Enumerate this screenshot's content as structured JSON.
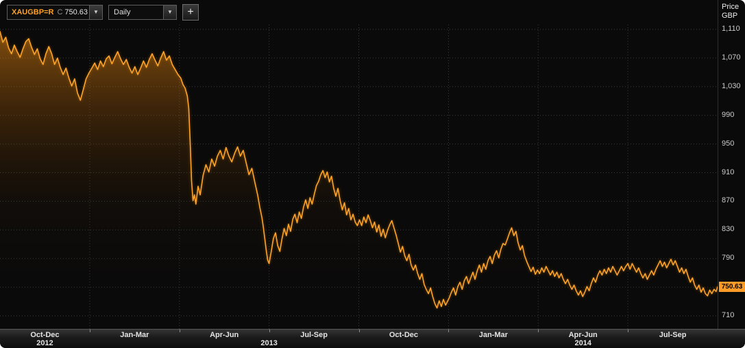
{
  "toolbar": {
    "ticker": "XAUGBP=R",
    "close_prefix": "C",
    "close_value": "750.63",
    "interval_selected": "Daily",
    "add_button_label": "+"
  },
  "price_axis": {
    "title_line1": "Price",
    "title_line2": "GBP",
    "current_badge": "750.63"
  },
  "chart_data": {
    "type": "area",
    "title": "XAUGBP=R Daily",
    "instrument": "XAUGBP=R",
    "interval": "Daily",
    "last_close": 750.63,
    "line_color": "#ffa42a",
    "grid": "dotted",
    "legend": "none",
    "ylabel": "Price GBP",
    "ylim": [
      692,
      1117
    ],
    "y_ticks": [
      {
        "label": "1,110",
        "value": 1110
      },
      {
        "label": "1,070",
        "value": 1070
      },
      {
        "label": "1,030",
        "value": 1030
      },
      {
        "label": "990",
        "value": 990
      },
      {
        "label": "950",
        "value": 950
      },
      {
        "label": "910",
        "value": 910
      },
      {
        "label": "870",
        "value": 870
      },
      {
        "label": "830",
        "value": 830
      },
      {
        "label": "790",
        "value": 790
      },
      {
        "label": "750",
        "value": 750
      },
      {
        "label": "710",
        "value": 710
      }
    ],
    "x_domain": [
      0,
      1000
    ],
    "x_quarters": [
      "Oct-Dec",
      "Jan-Mar",
      "Apr-Jun",
      "Jul-Sep",
      "Oct-Dec",
      "Jan-Mar",
      "Apr-Jun",
      "Jul-Sep"
    ],
    "x_years": [
      {
        "label": "2012",
        "span": [
          0,
          1
        ]
      },
      {
        "label": "2013",
        "span": [
          1,
          5
        ]
      },
      {
        "label": "2014",
        "span": [
          5,
          8
        ]
      }
    ],
    "series": [
      {
        "name": "XAUGBP=R",
        "points": [
          [
            0,
            1107
          ],
          [
            4,
            1092
          ],
          [
            8,
            1099
          ],
          [
            12,
            1084
          ],
          [
            16,
            1076
          ],
          [
            20,
            1088
          ],
          [
            24,
            1079
          ],
          [
            28,
            1071
          ],
          [
            32,
            1083
          ],
          [
            36,
            1093
          ],
          [
            40,
            1097
          ],
          [
            44,
            1085
          ],
          [
            48,
            1075
          ],
          [
            52,
            1083
          ],
          [
            56,
            1069
          ],
          [
            60,
            1061
          ],
          [
            64,
            1076
          ],
          [
            68,
            1086
          ],
          [
            72,
            1076
          ],
          [
            76,
            1061
          ],
          [
            80,
            1070
          ],
          [
            84,
            1057
          ],
          [
            88,
            1047
          ],
          [
            92,
            1056
          ],
          [
            96,
            1042
          ],
          [
            100,
            1031
          ],
          [
            104,
            1041
          ],
          [
            108,
            1021
          ],
          [
            112,
            1011
          ],
          [
            116,
            1026
          ],
          [
            120,
            1041
          ],
          [
            124,
            1049
          ],
          [
            128,
            1056
          ],
          [
            132,
            1063
          ],
          [
            136,
            1054
          ],
          [
            140,
            1066
          ],
          [
            144,
            1058
          ],
          [
            148,
            1069
          ],
          [
            152,
            1073
          ],
          [
            156,
            1062
          ],
          [
            160,
            1071
          ],
          [
            164,
            1079
          ],
          [
            168,
            1069
          ],
          [
            172,
            1061
          ],
          [
            176,
            1068
          ],
          [
            180,
            1057
          ],
          [
            184,
            1049
          ],
          [
            188,
            1058
          ],
          [
            192,
            1047
          ],
          [
            196,
            1056
          ],
          [
            200,
            1066
          ],
          [
            204,
            1057
          ],
          [
            208,
            1068
          ],
          [
            212,
            1076
          ],
          [
            216,
            1067
          ],
          [
            220,
            1059
          ],
          [
            224,
            1070
          ],
          [
            228,
            1079
          ],
          [
            232,
            1067
          ],
          [
            236,
            1073
          ],
          [
            240,
            1061
          ],
          [
            244,
            1054
          ],
          [
            248,
            1047
          ],
          [
            252,
            1042
          ],
          [
            255,
            1033
          ],
          [
            258,
            1028
          ],
          [
            261,
            1017
          ],
          [
            263,
            1000
          ],
          [
            265,
            952
          ],
          [
            267,
            898
          ],
          [
            269,
            871
          ],
          [
            271,
            879
          ],
          [
            273,
            866
          ],
          [
            276,
            891
          ],
          [
            279,
            879
          ],
          [
            283,
            906
          ],
          [
            287,
            921
          ],
          [
            291,
            911
          ],
          [
            295,
            929
          ],
          [
            299,
            919
          ],
          [
            303,
            933
          ],
          [
            307,
            941
          ],
          [
            311,
            929
          ],
          [
            315,
            945
          ],
          [
            319,
            933
          ],
          [
            323,
            925
          ],
          [
            327,
            937
          ],
          [
            331,
            946
          ],
          [
            335,
            933
          ],
          [
            339,
            941
          ],
          [
            343,
            924
          ],
          [
            347,
            907
          ],
          [
            351,
            916
          ],
          [
            355,
            897
          ],
          [
            359,
            879
          ],
          [
            362,
            862
          ],
          [
            365,
            847
          ],
          [
            367,
            834
          ],
          [
            369,
            818
          ],
          [
            371,
            802
          ],
          [
            373,
            788
          ],
          [
            375,
            783
          ],
          [
            378,
            800
          ],
          [
            381,
            818
          ],
          [
            384,
            826
          ],
          [
            387,
            808
          ],
          [
            390,
            800
          ],
          [
            393,
            818
          ],
          [
            396,
            832
          ],
          [
            399,
            822
          ],
          [
            402,
            838
          ],
          [
            405,
            828
          ],
          [
            408,
            845
          ],
          [
            411,
            852
          ],
          [
            414,
            840
          ],
          [
            417,
            855
          ],
          [
            420,
            846
          ],
          [
            423,
            862
          ],
          [
            426,
            872
          ],
          [
            429,
            860
          ],
          [
            432,
            875
          ],
          [
            435,
            866
          ],
          [
            438,
            880
          ],
          [
            441,
            892
          ],
          [
            444,
            898
          ],
          [
            447,
            907
          ],
          [
            450,
            913
          ],
          [
            453,
            903
          ],
          [
            456,
            911
          ],
          [
            459,
            897
          ],
          [
            462,
            905
          ],
          [
            465,
            888
          ],
          [
            468,
            877
          ],
          [
            471,
            888
          ],
          [
            474,
            871
          ],
          [
            477,
            858
          ],
          [
            480,
            868
          ],
          [
            483,
            851
          ],
          [
            486,
            860
          ],
          [
            489,
            844
          ],
          [
            492,
            852
          ],
          [
            495,
            841
          ],
          [
            498,
            836
          ],
          [
            501,
            844
          ],
          [
            504,
            836
          ],
          [
            507,
            848
          ],
          [
            510,
            840
          ],
          [
            513,
            851
          ],
          [
            516,
            843
          ],
          [
            519,
            833
          ],
          [
            522,
            841
          ],
          [
            525,
            827
          ],
          [
            528,
            837
          ],
          [
            531,
            821
          ],
          [
            534,
            831
          ],
          [
            537,
            819
          ],
          [
            540,
            829
          ],
          [
            543,
            837
          ],
          [
            546,
            843
          ],
          [
            549,
            833
          ],
          [
            552,
            823
          ],
          [
            555,
            811
          ],
          [
            558,
            799
          ],
          [
            561,
            807
          ],
          [
            564,
            794
          ],
          [
            567,
            787
          ],
          [
            570,
            796
          ],
          [
            573,
            781
          ],
          [
            576,
            774
          ],
          [
            579,
            781
          ],
          [
            582,
            769
          ],
          [
            585,
            761
          ],
          [
            588,
            769
          ],
          [
            591,
            754
          ],
          [
            594,
            747
          ],
          [
            597,
            741
          ],
          [
            600,
            749
          ],
          [
            603,
            737
          ],
          [
            606,
            727
          ],
          [
            609,
            721
          ],
          [
            612,
            731
          ],
          [
            615,
            723
          ],
          [
            618,
            733
          ],
          [
            621,
            725
          ],
          [
            624,
            731
          ],
          [
            626,
            735
          ],
          [
            629,
            743
          ],
          [
            632,
            749
          ],
          [
            635,
            739
          ],
          [
            638,
            751
          ],
          [
            641,
            757
          ],
          [
            644,
            747
          ],
          [
            647,
            759
          ],
          [
            650,
            765
          ],
          [
            653,
            755
          ],
          [
            656,
            763
          ],
          [
            659,
            771
          ],
          [
            662,
            761
          ],
          [
            665,
            773
          ],
          [
            668,
            781
          ],
          [
            671,
            771
          ],
          [
            674,
            783
          ],
          [
            677,
            775
          ],
          [
            680,
            787
          ],
          [
            683,
            793
          ],
          [
            686,
            783
          ],
          [
            689,
            795
          ],
          [
            692,
            801
          ],
          [
            695,
            791
          ],
          [
            698,
            803
          ],
          [
            701,
            811
          ],
          [
            704,
            809
          ],
          [
            707,
            817
          ],
          [
            710,
            826
          ],
          [
            713,
            833
          ],
          [
            716,
            822
          ],
          [
            719,
            828
          ],
          [
            722,
            812
          ],
          [
            725,
            802
          ],
          [
            728,
            808
          ],
          [
            731,
            794
          ],
          [
            734,
            786
          ],
          [
            737,
            779
          ],
          [
            740,
            772
          ],
          [
            743,
            778
          ],
          [
            746,
            768
          ],
          [
            749,
            774
          ],
          [
            752,
            769
          ],
          [
            755,
            777
          ],
          [
            758,
            771
          ],
          [
            761,
            779
          ],
          [
            764,
            773
          ],
          [
            767,
            767
          ],
          [
            770,
            773
          ],
          [
            773,
            765
          ],
          [
            776,
            771
          ],
          [
            779,
            763
          ],
          [
            782,
            769
          ],
          [
            785,
            761
          ],
          [
            788,
            755
          ],
          [
            791,
            761
          ],
          [
            794,
            753
          ],
          [
            797,
            747
          ],
          [
            800,
            753
          ],
          [
            803,
            745
          ],
          [
            806,
            739
          ],
          [
            809,
            745
          ],
          [
            812,
            737
          ],
          [
            815,
            743
          ],
          [
            818,
            751
          ],
          [
            821,
            745
          ],
          [
            824,
            755
          ],
          [
            827,
            763
          ],
          [
            830,
            757
          ],
          [
            833,
            767
          ],
          [
            836,
            773
          ],
          [
            839,
            767
          ],
          [
            842,
            775
          ],
          [
            845,
            769
          ],
          [
            848,
            777
          ],
          [
            851,
            771
          ],
          [
            854,
            779
          ],
          [
            857,
            773
          ],
          [
            860,
            767
          ],
          [
            863,
            773
          ],
          [
            866,
            779
          ],
          [
            869,
            773
          ],
          [
            872,
            779
          ],
          [
            875,
            783
          ],
          [
            878,
            775
          ],
          [
            881,
            783
          ],
          [
            884,
            777
          ],
          [
            887,
            771
          ],
          [
            890,
            777
          ],
          [
            893,
            769
          ],
          [
            896,
            763
          ],
          [
            899,
            769
          ],
          [
            902,
            761
          ],
          [
            905,
            767
          ],
          [
            908,
            773
          ],
          [
            911,
            767
          ],
          [
            914,
            775
          ],
          [
            917,
            781
          ],
          [
            920,
            787
          ],
          [
            923,
            779
          ],
          [
            926,
            785
          ],
          [
            929,
            777
          ],
          [
            932,
            783
          ],
          [
            935,
            789
          ],
          [
            938,
            781
          ],
          [
            941,
            787
          ],
          [
            944,
            779
          ],
          [
            947,
            771
          ],
          [
            950,
            777
          ],
          [
            953,
            769
          ],
          [
            956,
            775
          ],
          [
            959,
            765
          ],
          [
            962,
            757
          ],
          [
            965,
            763
          ],
          [
            968,
            753
          ],
          [
            971,
            747
          ],
          [
            974,
            753
          ],
          [
            977,
            743
          ],
          [
            980,
            749
          ],
          [
            983,
            741
          ],
          [
            986,
            738
          ],
          [
            989,
            746
          ],
          [
            992,
            741
          ],
          [
            995,
            747
          ],
          [
            998,
            744
          ],
          [
            1000,
            750.63
          ]
        ]
      }
    ]
  }
}
